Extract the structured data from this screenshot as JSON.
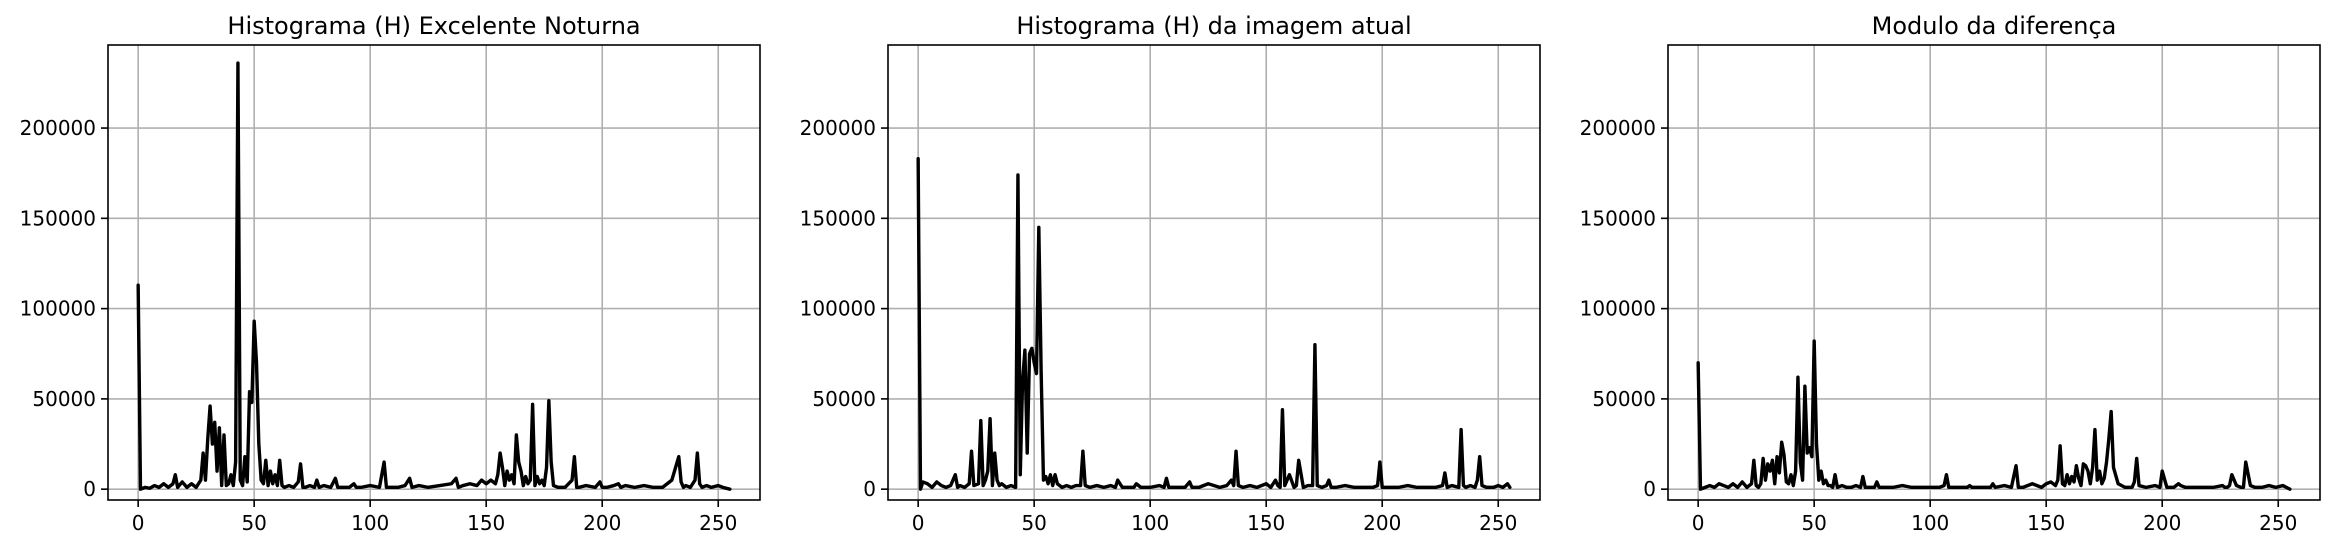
{
  "chart_data": [
    {
      "type": "line",
      "title": "Histograma (H) Excelente Noturna",
      "xlabel": "",
      "ylabel": "",
      "xlim": [
        -13,
        268
      ],
      "ylim": [
        -6000,
        246000
      ],
      "xticks": [
        0,
        50,
        100,
        150,
        200,
        250
      ],
      "yticks": [
        0,
        50000,
        100000,
        150000,
        200000
      ],
      "grid": true,
      "color": "#000000",
      "series": [
        {
          "x": [
            0,
            1,
            3,
            5,
            7,
            9,
            11,
            13,
            15,
            16,
            17,
            19,
            21,
            23,
            25,
            27,
            28,
            29,
            30,
            31,
            32,
            33,
            34,
            35,
            36,
            37,
            38,
            39,
            40,
            41,
            42,
            43,
            44,
            45,
            46,
            47,
            48,
            49,
            50,
            51,
            52,
            53,
            54,
            55,
            56,
            57,
            58,
            59,
            60,
            61,
            62,
            63,
            65,
            67,
            69,
            70,
            71,
            72,
            74,
            76,
            77,
            78,
            80,
            83,
            85,
            86,
            88,
            91,
            93,
            94,
            96,
            100,
            104,
            106,
            107,
            108,
            112,
            115,
            117,
            118,
            121,
            125,
            130,
            135,
            137,
            138,
            140,
            143,
            146,
            148,
            150,
            152,
            154,
            155,
            156,
            157,
            158,
            159,
            160,
            161,
            162,
            163,
            164,
            165,
            166,
            167,
            168,
            169,
            170,
            171,
            172,
            173,
            174,
            175,
            176,
            177,
            178,
            179,
            181,
            184,
            187,
            188,
            189,
            190,
            193,
            197,
            199,
            200,
            202,
            205,
            207,
            208,
            210,
            214,
            218,
            222,
            226,
            230,
            233,
            234,
            235,
            236,
            238,
            240,
            241,
            242,
            243,
            245,
            247,
            250,
            252,
            255
          ],
          "y": [
            113000,
            0,
            1000,
            500,
            2000,
            1000,
            3000,
            1000,
            3000,
            8000,
            1000,
            4000,
            1000,
            3000,
            1000,
            5000,
            20000,
            5000,
            28000,
            46000,
            25000,
            37000,
            10000,
            34000,
            2000,
            30000,
            2000,
            3000,
            8000,
            2000,
            15000,
            236000,
            5000,
            2000,
            18000,
            4000,
            54000,
            48000,
            93000,
            70000,
            25000,
            5000,
            3000,
            16000,
            2000,
            10000,
            3000,
            8000,
            2000,
            16000,
            2000,
            1000,
            2000,
            1000,
            4000,
            14000,
            1000,
            1000,
            2000,
            1000,
            5000,
            1000,
            2000,
            1000,
            6000,
            1000,
            1000,
            1000,
            3000,
            1000,
            1000,
            2000,
            1000,
            15000,
            1000,
            1000,
            1000,
            2000,
            6000,
            1000,
            2000,
            1000,
            2000,
            3000,
            6000,
            1000,
            2000,
            3000,
            2000,
            5000,
            3000,
            5000,
            3000,
            8000,
            20000,
            12000,
            2000,
            10000,
            5000,
            8000,
            3000,
            30000,
            15000,
            10000,
            2000,
            7000,
            3000,
            5000,
            47000,
            2000,
            7000,
            3000,
            5000,
            2000,
            12000,
            49000,
            15000,
            2000,
            1000,
            1000,
            5000,
            18000,
            1000,
            1000,
            2000,
            1000,
            4000,
            1000,
            1000,
            2000,
            3000,
            1000,
            2000,
            1000,
            2000,
            1000,
            1000,
            5000,
            18000,
            4000,
            1000,
            2000,
            1000,
            5000,
            20000,
            3000,
            1000,
            2000,
            1000,
            2000,
            1000,
            0
          ]
        }
      ]
    },
    {
      "type": "line",
      "title": "Histograma (H) da imagem atual",
      "xlabel": "",
      "ylabel": "",
      "xlim": [
        -13,
        268
      ],
      "ylim": [
        -6000,
        246000
      ],
      "xticks": [
        0,
        50,
        100,
        150,
        200,
        250
      ],
      "yticks": [
        0,
        50000,
        100000,
        150000,
        200000
      ],
      "grid": true,
      "color": "#000000",
      "series": [
        {
          "x": [
            0,
            1,
            2,
            4,
            6,
            8,
            10,
            12,
            14,
            16,
            17,
            18,
            20,
            22,
            23,
            24,
            26,
            27,
            28,
            29,
            30,
            31,
            32,
            33,
            34,
            35,
            36,
            38,
            40,
            42,
            43,
            44,
            45,
            46,
            47,
            48,
            49,
            50,
            51,
            52,
            53,
            54,
            55,
            56,
            57,
            58,
            59,
            60,
            62,
            64,
            66,
            68,
            70,
            71,
            72,
            74,
            77,
            80,
            83,
            85,
            86,
            88,
            91,
            93,
            94,
            96,
            100,
            104,
            106,
            107,
            108,
            112,
            115,
            117,
            118,
            121,
            125,
            130,
            133,
            135,
            136,
            137,
            138,
            140,
            143,
            146,
            150,
            152,
            154,
            155,
            156,
            157,
            158,
            160,
            162,
            163,
            164,
            166,
            168,
            170,
            171,
            172,
            174,
            176,
            177,
            178,
            180,
            184,
            188,
            192,
            196,
            198,
            199,
            200,
            203,
            207,
            211,
            215,
            219,
            223,
            226,
            227,
            228,
            230,
            233,
            234,
            235,
            236,
            238,
            240,
            241,
            242,
            243,
            245,
            248,
            250,
            252,
            254,
            255
          ],
          "y": [
            183000,
            0,
            4000,
            3000,
            1000,
            4000,
            2000,
            1000,
            2000,
            8000,
            1000,
            2000,
            1000,
            3000,
            21000,
            2000,
            3000,
            38000,
            2000,
            5000,
            10000,
            39000,
            2000,
            20000,
            5000,
            2000,
            3000,
            1000,
            2000,
            1000,
            174000,
            8000,
            60000,
            77000,
            20000,
            75000,
            78000,
            70000,
            64000,
            145000,
            65000,
            5000,
            7000,
            3000,
            8000,
            2000,
            8000,
            3000,
            1000,
            2000,
            1000,
            2000,
            2000,
            21000,
            2000,
            1000,
            2000,
            1000,
            2000,
            1000,
            5000,
            1000,
            1000,
            1000,
            3000,
            1000,
            1000,
            2000,
            1000,
            6000,
            1000,
            1000,
            1000,
            4000,
            1000,
            1000,
            3000,
            1000,
            2000,
            5000,
            2000,
            21000,
            2000,
            1000,
            2000,
            1000,
            3000,
            1000,
            5000,
            2000,
            1000,
            44000,
            2000,
            8000,
            1000,
            2000,
            16000,
            1000,
            2000,
            2000,
            80000,
            2000,
            1000,
            2000,
            5000,
            1000,
            1000,
            2000,
            1000,
            1000,
            1000,
            2000,
            15000,
            1000,
            1000,
            1000,
            2000,
            1000,
            1000,
            1000,
            2000,
            9000,
            1000,
            2000,
            1000,
            33000,
            2000,
            1000,
            2000,
            1000,
            5000,
            18000,
            2000,
            1000,
            1000,
            2000,
            1000,
            3000,
            1000
          ]
        }
      ]
    },
    {
      "type": "line",
      "title": "Modulo da diferença",
      "xlabel": "",
      "ylabel": "",
      "xlim": [
        -13,
        268
      ],
      "ylim": [
        -6000,
        246000
      ],
      "xticks": [
        0,
        50,
        100,
        150,
        200,
        250
      ],
      "yticks": [
        0,
        50000,
        100000,
        150000,
        200000
      ],
      "grid": true,
      "color": "#000000",
      "series": [
        {
          "x": [
            0,
            1,
            3,
            5,
            7,
            9,
            11,
            13,
            15,
            17,
            19,
            21,
            22,
            23,
            24,
            25,
            26,
            27,
            28,
            29,
            30,
            31,
            32,
            33,
            34,
            35,
            36,
            37,
            38,
            39,
            40,
            41,
            42,
            43,
            44,
            45,
            46,
            47,
            48,
            49,
            50,
            51,
            52,
            53,
            54,
            55,
            56,
            57,
            58,
            59,
            60,
            62,
            64,
            66,
            68,
            70,
            71,
            72,
            74,
            76,
            77,
            78,
            80,
            84,
            88,
            92,
            96,
            100,
            104,
            106,
            107,
            108,
            112,
            116,
            117,
            118,
            122,
            126,
            127,
            128,
            132,
            135,
            137,
            138,
            140,
            144,
            148,
            150,
            152,
            154,
            155,
            156,
            157,
            158,
            159,
            160,
            161,
            162,
            163,
            164,
            165,
            166,
            167,
            168,
            169,
            170,
            171,
            172,
            173,
            174,
            175,
            176,
            177,
            178,
            179,
            181,
            184,
            187,
            188,
            189,
            190,
            193,
            197,
            199,
            200,
            202,
            205,
            207,
            208,
            210,
            214,
            218,
            222,
            226,
            227,
            228,
            229,
            230,
            232,
            234,
            235,
            236,
            238,
            240,
            243,
            246,
            249,
            252,
            255
          ],
          "y": [
            70000,
            0,
            1000,
            2000,
            1000,
            3000,
            2000,
            1000,
            3000,
            1000,
            4000,
            1000,
            2000,
            3000,
            16000,
            2000,
            1000,
            3000,
            17000,
            5000,
            14000,
            10000,
            16000,
            3000,
            18000,
            9000,
            26000,
            19000,
            4000,
            3000,
            8000,
            2000,
            10000,
            62000,
            15000,
            5000,
            57000,
            20000,
            23000,
            18000,
            82000,
            25000,
            5000,
            10000,
            3000,
            5000,
            2000,
            2000,
            1000,
            8000,
            1000,
            2000,
            1000,
            1000,
            2000,
            1000,
            7000,
            1000,
            1000,
            1000,
            4000,
            1000,
            1000,
            1000,
            2000,
            1000,
            1000,
            1000,
            1000,
            2000,
            8000,
            1000,
            1000,
            1000,
            2000,
            1000,
            1000,
            1000,
            3000,
            1000,
            2000,
            1000,
            13000,
            1000,
            1000,
            3000,
            1000,
            3000,
            4000,
            2000,
            5000,
            24000,
            3000,
            2000,
            8000,
            3000,
            7000,
            4000,
            13000,
            6000,
            2000,
            14000,
            13000,
            10000,
            3000,
            12000,
            33000,
            5000,
            10000,
            3000,
            6000,
            15000,
            28000,
            43000,
            12000,
            3000,
            1000,
            1000,
            4000,
            17000,
            2000,
            1000,
            2000,
            1000,
            10000,
            1000,
            1000,
            3000,
            2000,
            1000,
            1000,
            1000,
            1000,
            2000,
            1000,
            1000,
            2000,
            8000,
            2000,
            1000,
            1000,
            15000,
            2000,
            1000,
            1000,
            2000,
            1000,
            2000,
            0
          ]
        }
      ]
    }
  ]
}
